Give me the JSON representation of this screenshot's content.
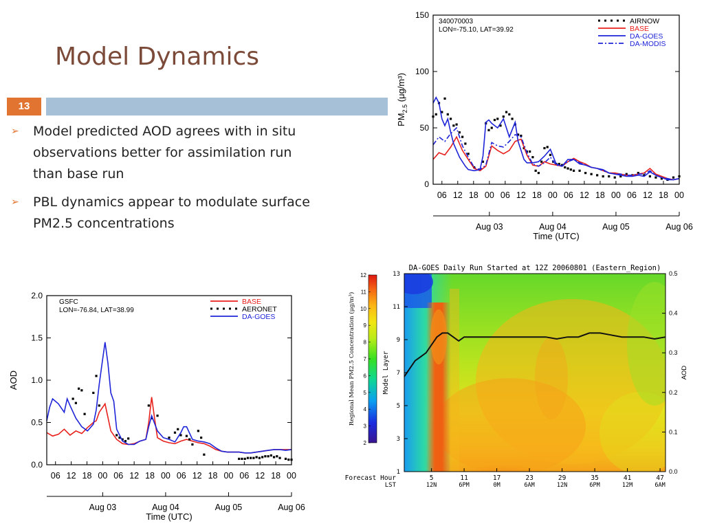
{
  "slide": {
    "title": "Model Dynamics",
    "number": "13",
    "bullets": [
      "Model predicted AOD agrees with in situ observations better for assimilation run than base run",
      "PBL dynamics appear to modulate surface PM2.5 concentrations"
    ]
  },
  "colors": {
    "title": "#7b4a38",
    "accent": "#e27431",
    "bar": "#a6c0d8",
    "base": "#e8201c",
    "da": "#1e24d8",
    "obs": "#000000"
  },
  "chart_data": [
    {
      "type": "line",
      "station": "340070003",
      "location": "LON=-75.10, LAT=39.92",
      "xlabel": "Time (UTC)",
      "ylabel_main": "PM",
      "ylabel_sub": "2.5",
      "ylabel_units": "(μg/m³)",
      "ylim": [
        0,
        150
      ],
      "yticks": [
        0,
        50,
        100,
        150
      ],
      "xlim": [
        0,
        21
      ],
      "xtick_labels": [
        "06",
        "12",
        "18",
        "00",
        "06",
        "12",
        "18",
        "00",
        "06",
        "12",
        "18",
        "00",
        "06",
        "12",
        "18",
        "00"
      ],
      "date_labels": [
        "Aug 03",
        "Aug 04",
        "Aug 05",
        "Aug 06"
      ],
      "legend_position": "top-right",
      "series": [
        {
          "name": "AIRNOW",
          "style": "dotted",
          "x": [
            0.0,
            0.25,
            0.5,
            0.75,
            1.0,
            1.25,
            1.5,
            1.75,
            2.0,
            2.25,
            2.5,
            2.75,
            3.0,
            3.5,
            4.0,
            4.25,
            4.5,
            4.75,
            5.0,
            5.25,
            5.5,
            5.75,
            6.0,
            6.25,
            6.5,
            6.75,
            7.0,
            7.25,
            7.5,
            7.75,
            8.0,
            8.25,
            8.5,
            8.75,
            9.0,
            9.25,
            9.5,
            9.75,
            10.0,
            10.25,
            10.5,
            10.75,
            11.0,
            11.25,
            11.5,
            11.75,
            12.0,
            12.5,
            13.0,
            13.5,
            14.0,
            14.5,
            15.0,
            15.5,
            16.0,
            16.5,
            17.0,
            17.5,
            18.0,
            18.5,
            19.0,
            19.5,
            20.0,
            20.5,
            21.0
          ],
          "y": [
            60,
            62,
            72,
            64,
            76,
            62,
            58,
            52,
            53,
            46,
            42,
            36,
            27,
            15,
            13,
            20,
            54,
            48,
            50,
            57,
            58,
            52,
            60,
            64,
            62,
            58,
            53,
            44,
            43,
            32,
            29,
            29,
            24,
            12,
            10,
            20,
            32,
            33,
            26,
            20,
            18,
            18,
            17,
            15,
            14,
            13,
            12,
            12,
            10,
            9,
            8,
            7,
            7,
            6,
            7,
            9,
            8,
            10,
            8,
            7,
            6,
            5,
            4,
            6,
            7
          ]
        },
        {
          "name": "BASE",
          "style": "solid",
          "color": "#e8201c",
          "x": [
            0.0,
            0.5,
            1.0,
            1.5,
            2.0,
            2.5,
            3.0,
            3.5,
            4.0,
            4.5,
            5.0,
            5.5,
            6.0,
            6.5,
            7.0,
            7.5,
            8.0,
            8.5,
            9.0,
            9.5,
            10.0,
            10.5,
            11.0,
            11.5,
            12.0,
            12.5,
            13.0,
            13.5,
            14.0,
            14.5,
            15.0,
            15.5,
            16.0,
            16.5,
            17.0,
            17.5,
            18.0,
            18.5,
            19.0,
            19.5,
            20.0,
            20.5,
            21.0
          ],
          "y": [
            22,
            28,
            26,
            33,
            42,
            30,
            22,
            14,
            12,
            16,
            34,
            30,
            27,
            30,
            38,
            40,
            26,
            17,
            16,
            20,
            18,
            17,
            16,
            20,
            23,
            20,
            18,
            15,
            14,
            12,
            10,
            10,
            9,
            8,
            8,
            9,
            10,
            14,
            9,
            7,
            5,
            4,
            5
          ]
        },
        {
          "name": "DA-GOES",
          "style": "solid",
          "color": "#1e24d8",
          "x": [
            0.0,
            0.25,
            0.5,
            0.75,
            1.0,
            1.25,
            1.5,
            1.75,
            2.0,
            2.25,
            2.5,
            2.75,
            3.0,
            3.5,
            4.0,
            4.25,
            4.5,
            4.75,
            5.0,
            5.5,
            6.0,
            6.5,
            7.0,
            7.25,
            7.5,
            7.75,
            8.0,
            8.5,
            9.0,
            9.5,
            10.0,
            10.5,
            11.0,
            11.5,
            12.0,
            12.5,
            13.0,
            13.5,
            14.0,
            14.5,
            15.0,
            15.5,
            16.0,
            16.5,
            17.0,
            17.5,
            18.0,
            18.5,
            19.0,
            19.5,
            20.0,
            20.5,
            21.0
          ],
          "y": [
            72,
            77,
            72,
            58,
            52,
            58,
            46,
            36,
            30,
            24,
            20,
            16,
            13,
            12,
            13,
            25,
            55,
            57,
            54,
            50,
            58,
            42,
            55,
            38,
            30,
            22,
            19,
            19,
            20,
            25,
            31,
            18,
            16,
            22,
            22,
            18,
            17,
            15,
            14,
            13,
            10,
            9,
            8,
            7,
            7,
            8,
            7,
            11,
            8,
            6,
            4,
            4,
            5
          ]
        },
        {
          "name": "DA-MODIS",
          "style": "dashdot",
          "color": "#1e24d8",
          "x": [
            0.0,
            0.5,
            1.0,
            1.5,
            2.0,
            2.5,
            3.0,
            3.5,
            4.0,
            4.5,
            5.0,
            5.5,
            6.0,
            6.5,
            7.0,
            7.5,
            8.0,
            8.5,
            9.0,
            9.5,
            10.0,
            10.5,
            11.0,
            11.5,
            12.0,
            12.5,
            13.0,
            13.5,
            14.0,
            14.5,
            15.0,
            15.5,
            16.0,
            16.5,
            17.0,
            17.5,
            18.0,
            18.5,
            19.0,
            19.5,
            20.0,
            20.5,
            21.0
          ],
          "y": [
            35,
            42,
            38,
            45,
            50,
            34,
            24,
            15,
            13,
            17,
            37,
            34,
            33,
            38,
            44,
            42,
            28,
            18,
            16,
            19,
            24,
            17,
            16,
            20,
            22,
            19,
            17,
            15,
            14,
            12,
            10,
            9,
            9,
            8,
            8,
            9,
            9,
            12,
            8,
            6,
            5,
            4,
            5
          ]
        }
      ]
    },
    {
      "type": "line",
      "station": "GSFC",
      "location": "LON=-76.84, LAT=38.99",
      "xlabel": "Time (UTC)",
      "ylabel": "AOD",
      "ylim": [
        0,
        2.0
      ],
      "yticks": [
        0.0,
        0.5,
        1.0,
        1.5,
        2.0
      ],
      "ytick_labels": [
        "0.0",
        "0.5",
        "1.0",
        "1.5",
        "2.0"
      ],
      "xlim": [
        0,
        21
      ],
      "xtick_labels": [
        "06",
        "12",
        "18",
        "00",
        "06",
        "12",
        "18",
        "00",
        "06",
        "12",
        "18",
        "00",
        "06",
        "12",
        "18",
        "00"
      ],
      "date_labels": [
        "Aug 03",
        "Aug 04",
        "Aug 05",
        "Aug 06"
      ],
      "legend_position": "top-right",
      "series": [
        {
          "name": "BASE",
          "style": "solid",
          "color": "#e8201c",
          "x": [
            0.0,
            0.5,
            1.0,
            1.5,
            2.0,
            2.5,
            3.0,
            3.5,
            4.0,
            4.25,
            4.5,
            5.0,
            5.5,
            6.0,
            6.5,
            7.0,
            7.5,
            8.0,
            8.5,
            8.75,
            9.0,
            9.25,
            9.5,
            10.0,
            10.5,
            11.0,
            11.5,
            12.0,
            12.5,
            13.0,
            13.5,
            14.0,
            14.5,
            15.0,
            15.5,
            16.0,
            16.5,
            17.0,
            17.5,
            18.0,
            18.5,
            19.0,
            19.5,
            20.0,
            20.5,
            21.0
          ],
          "y": [
            0.38,
            0.34,
            0.36,
            0.42,
            0.35,
            0.4,
            0.37,
            0.44,
            0.5,
            0.52,
            0.62,
            0.72,
            0.4,
            0.3,
            0.25,
            0.24,
            0.25,
            0.28,
            0.3,
            0.5,
            0.8,
            0.55,
            0.32,
            0.28,
            0.26,
            0.25,
            0.28,
            0.3,
            0.28,
            0.26,
            0.25,
            0.22,
            0.18,
            0.16,
            0.15,
            0.15,
            0.15,
            0.14,
            0.14,
            0.15,
            0.16,
            0.17,
            0.18,
            0.18,
            0.18,
            0.18
          ]
        },
        {
          "name": "AERONET",
          "style": "dotted",
          "x": [
            2.25,
            2.5,
            2.75,
            3.0,
            3.25,
            4.0,
            4.25,
            4.5,
            6.0,
            6.25,
            6.5,
            6.75,
            7.0,
            8.75,
            9.0,
            9.5,
            10.5,
            11.0,
            11.25,
            11.5,
            12.0,
            12.25,
            12.5,
            13.0,
            13.25,
            13.5,
            16.5,
            16.75,
            17.0,
            17.25,
            17.5,
            17.75,
            18.0,
            18.25,
            18.5,
            18.75,
            19.0,
            19.25,
            19.5,
            19.75,
            20.0,
            20.5,
            20.75,
            21.0
          ],
          "y": [
            0.78,
            0.73,
            0.9,
            0.88,
            0.6,
            0.85,
            1.05,
            0.7,
            0.35,
            0.32,
            0.3,
            0.28,
            0.31,
            0.7,
            0.55,
            0.58,
            0.32,
            0.38,
            0.42,
            0.35,
            0.34,
            0.3,
            0.24,
            0.4,
            0.32,
            0.12,
            0.07,
            0.07,
            0.07,
            0.08,
            0.08,
            0.08,
            0.09,
            0.08,
            0.09,
            0.1,
            0.1,
            0.11,
            0.09,
            0.1,
            0.08,
            0.07,
            0.06,
            0.06
          ]
        },
        {
          "name": "DA-GOES",
          "style": "solid",
          "color": "#1e24d8",
          "x": [
            0.0,
            0.25,
            0.5,
            1.0,
            1.5,
            1.75,
            2.0,
            2.5,
            3.0,
            3.5,
            4.0,
            4.25,
            4.5,
            4.75,
            5.0,
            5.25,
            5.5,
            5.75,
            6.0,
            6.5,
            7.0,
            7.5,
            8.0,
            8.5,
            8.75,
            9.0,
            9.5,
            10.0,
            10.5,
            11.0,
            11.5,
            11.75,
            12.0,
            12.5,
            13.0,
            13.5,
            14.0,
            14.5,
            15.0,
            15.5,
            16.0,
            16.5,
            17.0,
            17.5,
            18.0,
            18.5,
            19.0,
            19.5,
            20.0,
            20.5,
            21.0
          ],
          "y": [
            0.52,
            0.68,
            0.78,
            0.72,
            0.62,
            0.78,
            0.7,
            0.55,
            0.45,
            0.4,
            0.48,
            0.65,
            0.95,
            1.2,
            1.45,
            1.2,
            0.85,
            0.75,
            0.42,
            0.28,
            0.24,
            0.24,
            0.28,
            0.3,
            0.45,
            0.58,
            0.4,
            0.32,
            0.3,
            0.27,
            0.38,
            0.45,
            0.45,
            0.3,
            0.28,
            0.27,
            0.25,
            0.2,
            0.16,
            0.15,
            0.15,
            0.15,
            0.14,
            0.14,
            0.15,
            0.16,
            0.17,
            0.18,
            0.18,
            0.17,
            0.18
          ]
        }
      ]
    },
    {
      "type": "heatmap",
      "title": "DA-GOES Daily Run Started at 12Z 20060801 (Eastern_Region)",
      "xlabel_hour": "Forecast Hour",
      "xlabel_lst": "LST",
      "xticks_hour": [
        "5",
        "11",
        "17",
        "23",
        "29",
        "35",
        "41",
        "47"
      ],
      "xticks_lst": [
        "12N",
        "6PM",
        "0M",
        "6AM",
        "12N",
        "6PM",
        "12M",
        "6AM"
      ],
      "xlim": [
        0,
        48
      ],
      "ylabel": "Model Layer",
      "yticks": [
        "1",
        "3",
        "5",
        "7",
        "9",
        "11",
        "13"
      ],
      "ylim": [
        1,
        13
      ],
      "colorbar_label": "Regional Mean PM2.5 Concentration (μg/m³)",
      "colorbar_ticks": [
        "2",
        "3",
        "4",
        "5",
        "6",
        "7",
        "8",
        "9",
        "10",
        "11",
        "12"
      ],
      "colorbar_range": [
        2,
        12
      ],
      "right_axis_label": "AOD",
      "right_yticks": [
        "0.0",
        "0.1",
        "0.2",
        "0.3",
        "0.4",
        "0.5"
      ],
      "right_ylim": [
        0,
        0.5
      ],
      "aod_series": {
        "name": "AOD",
        "x": [
          0,
          1,
          2,
          3,
          4,
          5,
          6,
          7,
          8,
          9,
          10,
          11,
          12,
          14,
          16,
          18,
          20,
          22,
          24,
          26,
          28,
          30,
          32,
          34,
          36,
          38,
          40,
          42,
          44,
          46,
          48
        ],
        "y": [
          0.24,
          0.26,
          0.28,
          0.29,
          0.3,
          0.32,
          0.34,
          0.35,
          0.35,
          0.34,
          0.33,
          0.34,
          0.34,
          0.34,
          0.34,
          0.34,
          0.34,
          0.34,
          0.34,
          0.34,
          0.335,
          0.34,
          0.34,
          0.35,
          0.35,
          0.345,
          0.34,
          0.34,
          0.34,
          0.335,
          0.34
        ]
      }
    }
  ]
}
